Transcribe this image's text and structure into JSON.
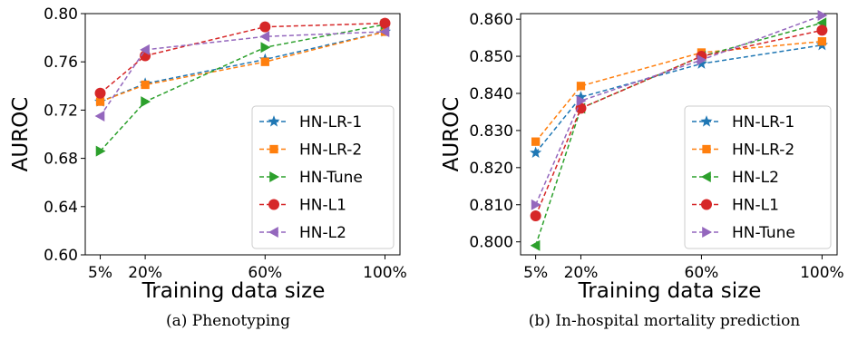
{
  "chart_data": [
    {
      "type": "line",
      "caption": "(a) Phenotyping",
      "xlabel": "Training data size",
      "ylabel": "AUROC",
      "x": [
        5,
        20,
        60,
        100
      ],
      "x_tick_labels": [
        "5%",
        "20%",
        "60%",
        "100%"
      ],
      "ylim": [
        0.6,
        0.8
      ],
      "y_ticks": [
        0.6,
        0.64,
        0.68,
        0.72,
        0.76,
        0.8
      ],
      "y_tick_labels": [
        "0.60",
        "0.64",
        "0.68",
        "0.72",
        "0.76",
        "0.80"
      ],
      "y_ticks_decimals": 2,
      "legend_position": "bottom-right",
      "series": [
        {
          "name": "HN-LR-1",
          "marker": "star",
          "color": "#1f77b4",
          "values": [
            0.727,
            0.742,
            0.762,
            0.785
          ]
        },
        {
          "name": "HN-LR-2",
          "marker": "square",
          "color": "#ff7f0e",
          "values": [
            0.727,
            0.741,
            0.76,
            0.785
          ]
        },
        {
          "name": "HN-Tune",
          "marker": "triangle-right",
          "color": "#2ca02c",
          "values": [
            0.686,
            0.727,
            0.772,
            0.791
          ]
        },
        {
          "name": "HN-L1",
          "marker": "circle",
          "color": "#d62728",
          "values": [
            0.734,
            0.765,
            0.789,
            0.792
          ]
        },
        {
          "name": "HN-L2",
          "marker": "triangle-left",
          "color": "#9467bd",
          "values": [
            0.715,
            0.77,
            0.781,
            0.785
          ]
        }
      ]
    },
    {
      "type": "line",
      "caption": "(b) In-hospital mortality prediction",
      "xlabel": "Training data size",
      "ylabel": "AUROC",
      "x": [
        5,
        20,
        60,
        100
      ],
      "x_tick_labels": [
        "5%",
        "20%",
        "60%",
        "100%"
      ],
      "ylim": [
        0.7965,
        0.8615
      ],
      "y_ticks": [
        0.8,
        0.81,
        0.82,
        0.83,
        0.84,
        0.85,
        0.86
      ],
      "y_tick_labels": [
        "0.800",
        "0.810",
        "0.820",
        "0.830",
        "0.840",
        "0.850",
        "0.860"
      ],
      "y_ticks_decimals": 3,
      "legend_position": "bottom-right",
      "series": [
        {
          "name": "HN-LR-1",
          "marker": "star",
          "color": "#1f77b4",
          "values": [
            0.824,
            0.839,
            0.848,
            0.853
          ]
        },
        {
          "name": "HN-LR-2",
          "marker": "square",
          "color": "#ff7f0e",
          "values": [
            0.827,
            0.842,
            0.851,
            0.854
          ]
        },
        {
          "name": "HN-L2",
          "marker": "triangle-left",
          "color": "#2ca02c",
          "values": [
            0.799,
            0.836,
            0.85,
            0.859
          ]
        },
        {
          "name": "HN-L1",
          "marker": "circle",
          "color": "#d62728",
          "values": [
            0.807,
            0.836,
            0.85,
            0.857
          ]
        },
        {
          "name": "HN-Tune",
          "marker": "triangle-right",
          "color": "#9467bd",
          "values": [
            0.81,
            0.838,
            0.849,
            0.861
          ]
        }
      ]
    }
  ]
}
